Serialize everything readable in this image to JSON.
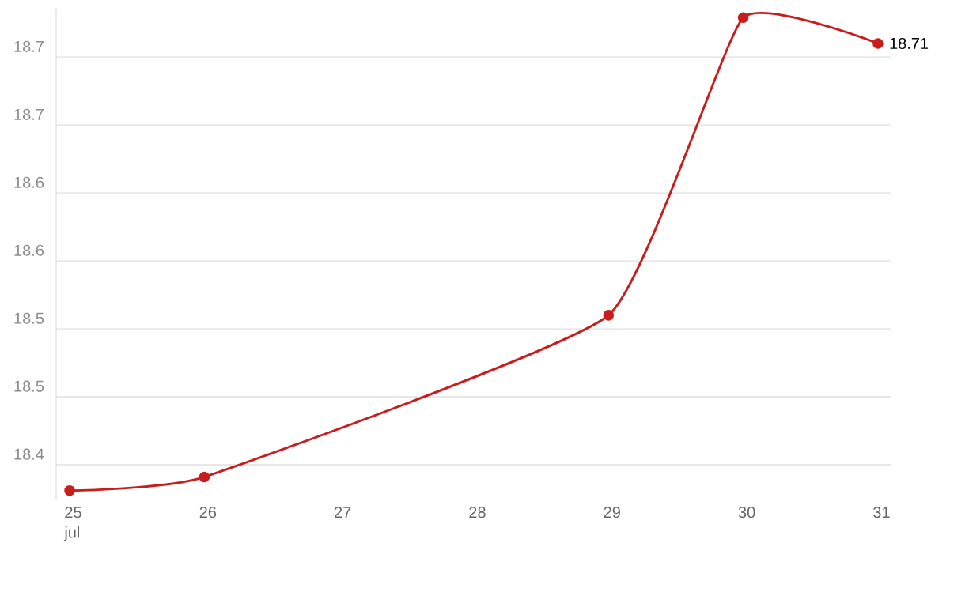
{
  "chart_data": {
    "type": "line",
    "x": [
      25,
      26,
      29,
      30,
      31
    ],
    "series": [
      {
        "color": "#c71e1d",
        "values": [
          18.381,
          18.391,
          18.51,
          18.729,
          18.71
        ],
        "value_labels": [
          null,
          null,
          null,
          null,
          "18.71"
        ]
      }
    ],
    "xlim": [
      24.9,
      31.1
    ],
    "ylim": [
      18.375,
      18.735
    ],
    "xticks": [
      {
        "value": 25,
        "label": "25 jul"
      },
      26,
      27,
      28,
      29,
      30,
      31
    ],
    "yticks": [
      {
        "value": 18.4,
        "label": "18.4"
      },
      {
        "value": 18.45,
        "label": "18.5"
      },
      {
        "value": 18.5,
        "label": "18.5"
      },
      {
        "value": 18.55,
        "label": "18.6"
      },
      {
        "value": 18.6,
        "label": "18.6"
      },
      {
        "value": 18.65,
        "label": "18.7"
      },
      {
        "value": 18.7,
        "label": "18.7"
      }
    ],
    "grid": "y",
    "marker": "circle",
    "line_style": "solid"
  }
}
